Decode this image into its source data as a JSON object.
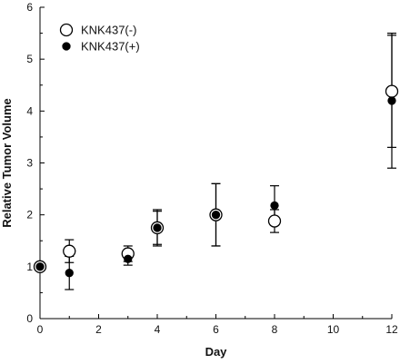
{
  "chart_data": {
    "type": "scatter",
    "title": "",
    "xlabel": "Day",
    "ylabel": "Relative Tumor Volume",
    "xlim": [
      0,
      12
    ],
    "ylim": [
      0,
      6
    ],
    "xticks": [
      0,
      2,
      4,
      6,
      8,
      10,
      12
    ],
    "yticks": [
      0,
      1,
      2,
      3,
      4,
      5,
      6
    ],
    "grid": false,
    "legend_position": "top-left",
    "series": [
      {
        "name": "KNK437(-)",
        "marker": "open-circle",
        "points": [
          {
            "x": 0,
            "y": 1.0,
            "err": 0
          },
          {
            "x": 1,
            "y": 1.3,
            "err": 0.22
          },
          {
            "x": 3,
            "y": 1.25,
            "err": 0.15
          },
          {
            "x": 4,
            "y": 1.75,
            "err": 0.35
          },
          {
            "x": 6,
            "y": 2.0,
            "err": 0.6
          },
          {
            "x": 8,
            "y": 1.88,
            "err": 0.22
          },
          {
            "x": 12,
            "y": 4.38,
            "err": 1.08
          }
        ]
      },
      {
        "name": "KNK437(+)",
        "marker": "filled-circle",
        "points": [
          {
            "x": 0,
            "y": 1.0,
            "err": 0
          },
          {
            "x": 1,
            "y": 0.88,
            "err": 0.32
          },
          {
            "x": 3,
            "y": 1.15,
            "err": 0.12
          },
          {
            "x": 4,
            "y": 1.75,
            "err": 0.32
          },
          {
            "x": 6,
            "y": 2.0,
            "err": 0.6
          },
          {
            "x": 8,
            "y": 2.18,
            "err": 0.38
          },
          {
            "x": 12,
            "y": 4.2,
            "err": 1.3
          }
        ]
      }
    ]
  }
}
